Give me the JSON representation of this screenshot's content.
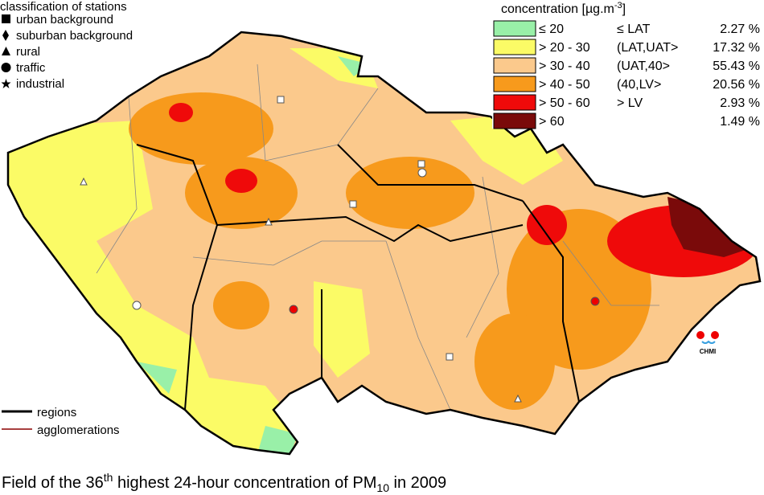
{
  "station_legend": {
    "title": "classification of stations",
    "items": [
      "urban background",
      "suburban background",
      "rural",
      "traffic",
      "industrial"
    ]
  },
  "concentration_legend": {
    "title": "concentration [µg.m",
    "title_sup": "-3",
    "title_end": "]",
    "items": [
      {
        "range": "≤ 20",
        "class": "≤ LAT",
        "share": "2.27 %",
        "color": "#99f0a8"
      },
      {
        "range": "> 20 - 30",
        "class": "(LAT,UAT>",
        "share": "17.32 %",
        "color": "#fbfb66"
      },
      {
        "range": "> 30 - 40",
        "class": "(UAT,40>",
        "share": "55.43 %",
        "color": "#fbc98c"
      },
      {
        "range": "> 40 - 50",
        "class": "(40,LV>",
        "share": "20.56 %",
        "color": "#f79a1c"
      },
      {
        "range": "> 50 - 60",
        "class": "> LV",
        "share": "2.93 %",
        "color": "#ef0a0a"
      },
      {
        "range": "> 60",
        "class": "",
        "share": "1.49 %",
        "color": "#7a0a0a"
      }
    ]
  },
  "line_legend": {
    "regions": "regions",
    "agglomerations": "agglomerations"
  },
  "logo": "CHMI",
  "caption": {
    "part1": "Field of the 36",
    "sup": "th",
    "part2": " highest 24-hour concentration of PM",
    "sub": "10",
    "part3": " in 2009"
  }
}
